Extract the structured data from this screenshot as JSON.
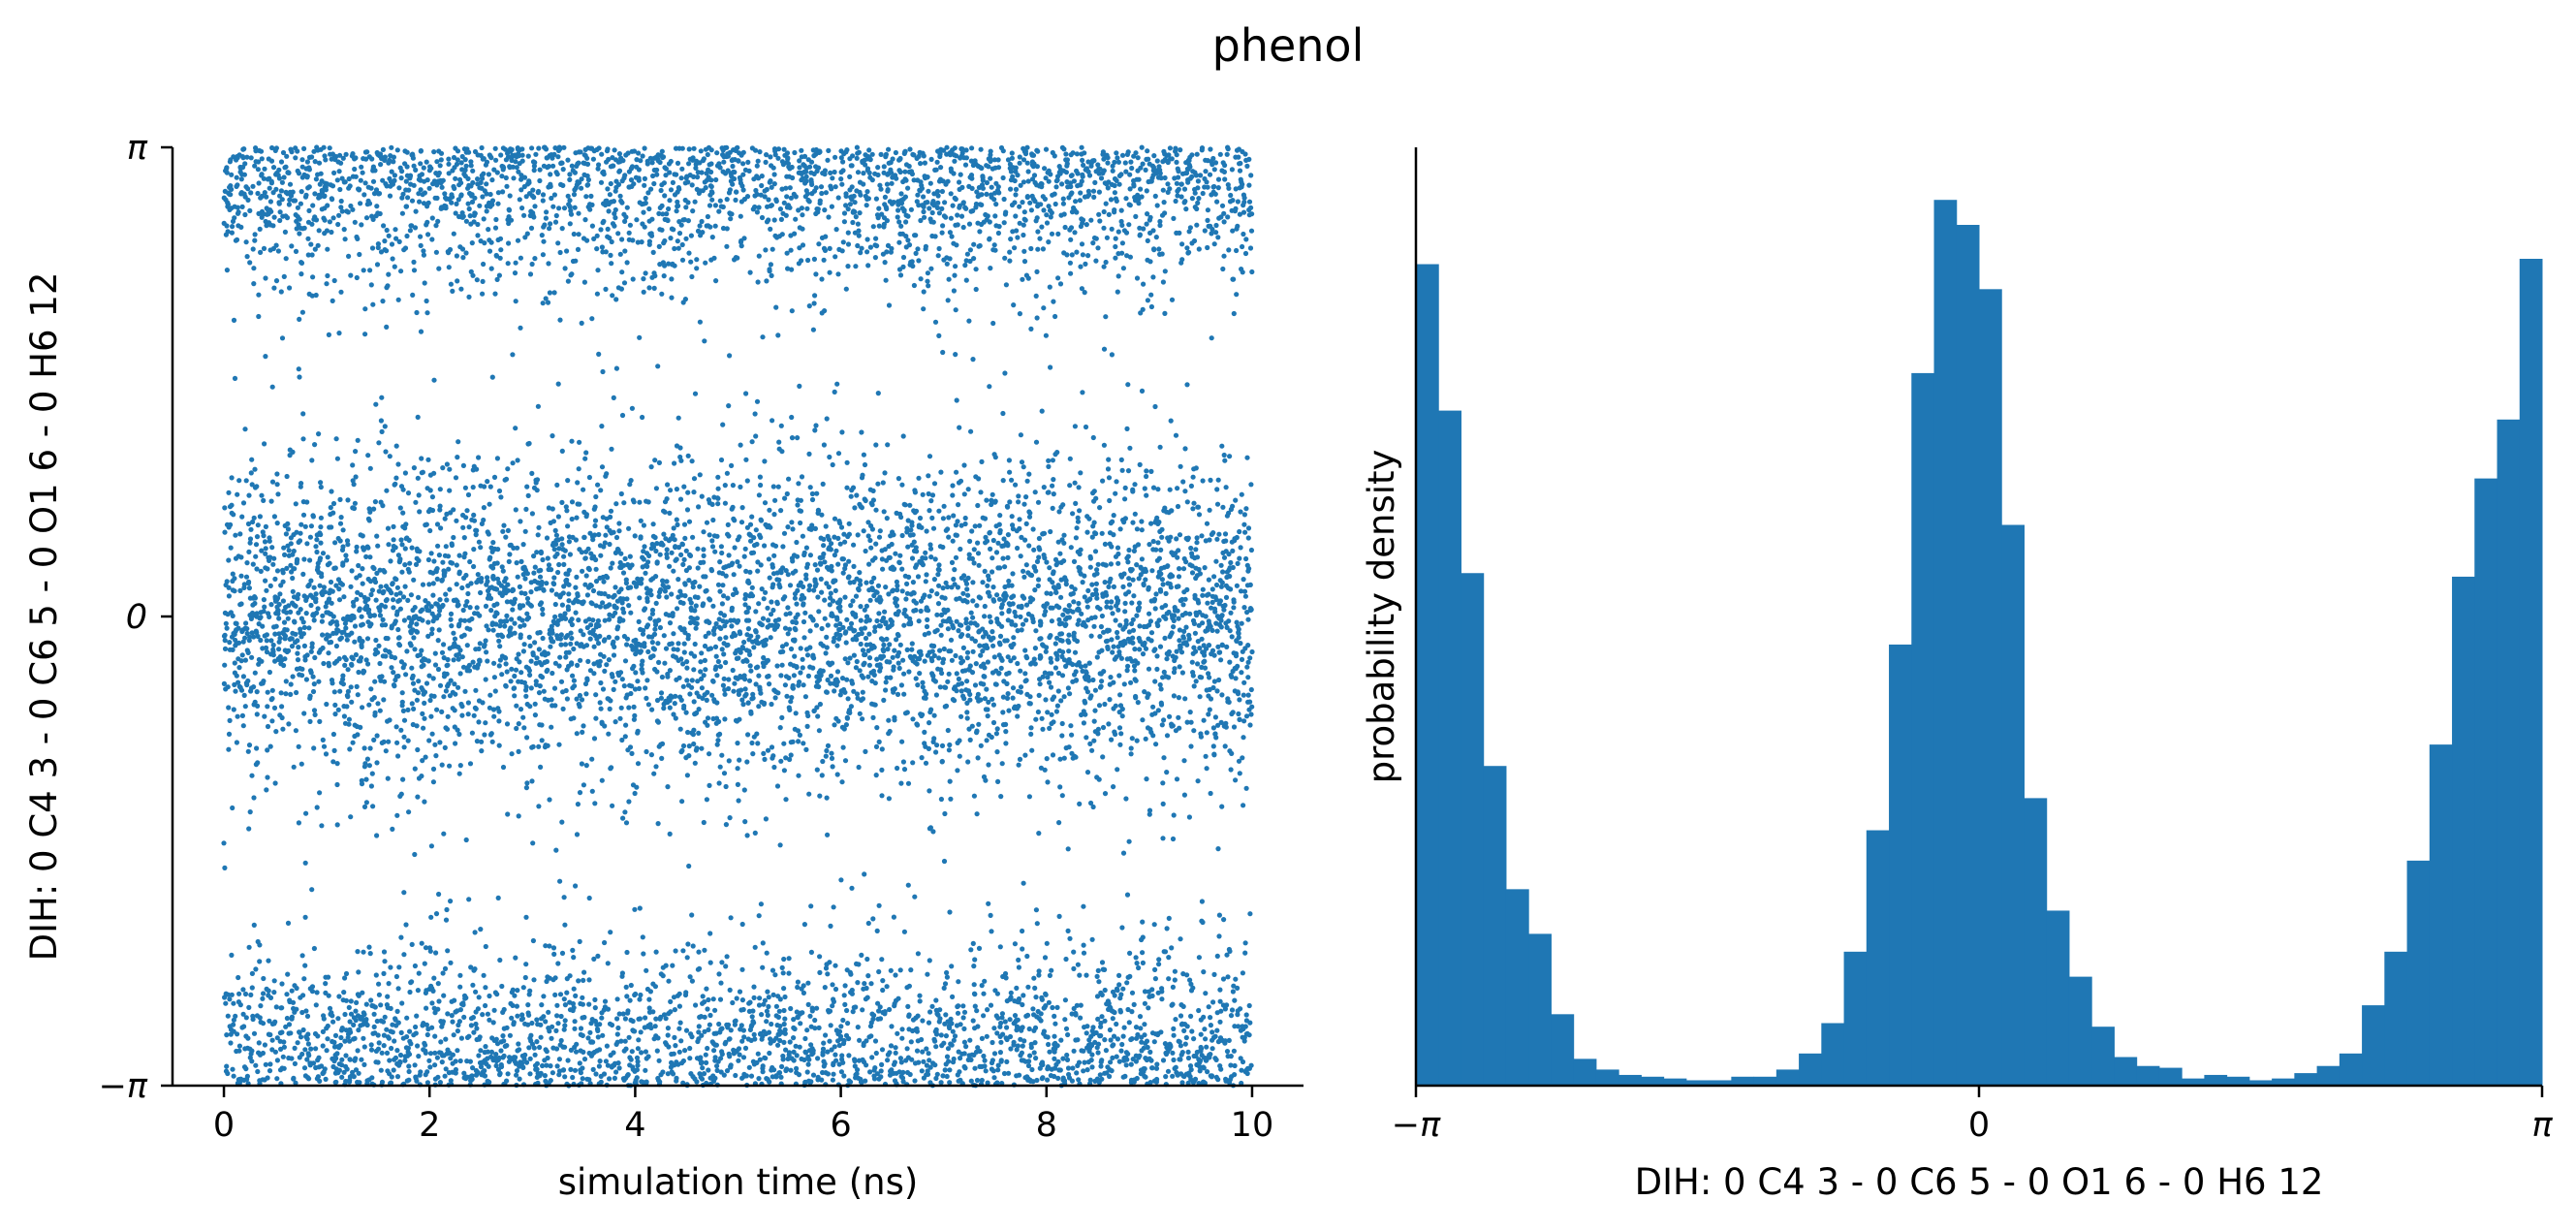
{
  "figure_title": "phenol",
  "colors": {
    "series": "#1f77b4",
    "axis": "#000000",
    "background": "#ffffff"
  },
  "chart_data": [
    {
      "type": "scatter",
      "title": "",
      "xlabel": "simulation time (ns)",
      "ylabel": "DIH:  0 C4 3 -  0 C6 5 -  0 O1 6 -  0 H6 12",
      "xlim": [
        -0.5,
        10.5
      ],
      "ylim": [
        -3.14159,
        3.14159
      ],
      "xticks": [
        0,
        2,
        4,
        6,
        8,
        10
      ],
      "xtick_labels": [
        "0",
        "2",
        "4",
        "6",
        "8",
        "10"
      ],
      "yticks": [
        -3.14159,
        0,
        3.14159
      ],
      "ytick_labels": [
        "−π",
        "0",
        "π"
      ],
      "grid": false,
      "marker": "small dot",
      "n_points": 10000,
      "time_range_ns": [
        0,
        10
      ],
      "clusters": [
        {
          "center": 0.0,
          "spread": 0.55,
          "fraction": 0.5
        },
        {
          "center": 3.14159,
          "spread": 0.45,
          "fraction": 0.25,
          "wraps": true
        },
        {
          "center": -3.14159,
          "spread": 0.45,
          "fraction": 0.25,
          "wraps": true
        }
      ]
    },
    {
      "type": "bar",
      "subtype": "histogram",
      "title": "",
      "xlabel": "DIH:  0 C4 3 -  0 C6 5 -  0 O1 6 -  0 H6 12",
      "ylabel": "probability density",
      "xlim": [
        -3.14159,
        3.14159
      ],
      "xticks": [
        -3.14159,
        0,
        3.14159
      ],
      "xtick_labels": [
        "−π",
        "0",
        "π"
      ],
      "yticks_visible": false,
      "grid": false,
      "bin_edges_range": [
        -3.14159,
        3.14159
      ],
      "n_bins": 50,
      "values": [
        0.46,
        0.378,
        0.287,
        0.179,
        0.11,
        0.085,
        0.04,
        0.015,
        0.009,
        0.006,
        0.005,
        0.004,
        0.003,
        0.003,
        0.005,
        0.005,
        0.009,
        0.018,
        0.035,
        0.075,
        0.143,
        0.247,
        0.399,
        0.496,
        0.482,
        0.446,
        0.314,
        0.161,
        0.098,
        0.061,
        0.033,
        0.016,
        0.011,
        0.01,
        0.004,
        0.006,
        0.005,
        0.003,
        0.004,
        0.007,
        0.011,
        0.018,
        0.045,
        0.075,
        0.126,
        0.191,
        0.285,
        0.34,
        0.373,
        0.463
      ]
    }
  ]
}
